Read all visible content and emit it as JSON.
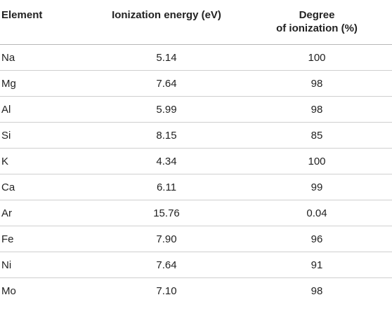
{
  "table": {
    "headers": {
      "element": "Element",
      "ionization_energy": "Ionization energy (eV)",
      "degree_line1": "Degree",
      "degree_line2": "of ionization (%)"
    },
    "rows": [
      {
        "element": "Na",
        "energy": "5.14",
        "degree": "100"
      },
      {
        "element": "Mg",
        "energy": "7.64",
        "degree": "98"
      },
      {
        "element": "Al",
        "energy": "5.99",
        "degree": "98"
      },
      {
        "element": "Si",
        "energy": "8.15",
        "degree": "85"
      },
      {
        "element": "K",
        "energy": "4.34",
        "degree": "100"
      },
      {
        "element": "Ca",
        "energy": "6.11",
        "degree": "99"
      },
      {
        "element": "Ar",
        "energy": "15.76",
        "degree": "0.04"
      },
      {
        "element": "Fe",
        "energy": "7.90",
        "degree": "96"
      },
      {
        "element": "Ni",
        "energy": "7.64",
        "degree": "91"
      },
      {
        "element": "Mo",
        "energy": "7.10",
        "degree": "98"
      }
    ]
  }
}
